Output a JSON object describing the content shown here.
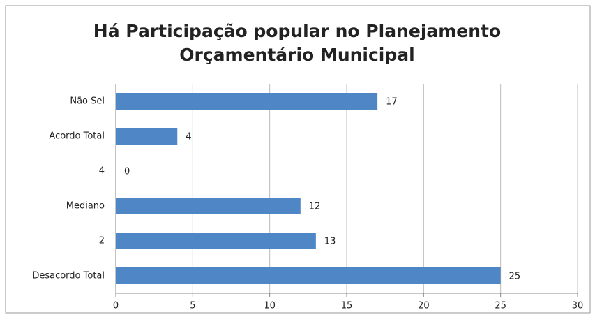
{
  "chart_data": {
    "type": "hbar",
    "title": [
      "Há Participação popular no Planejamento",
      "Orçamentário Municipal"
    ],
    "categories": [
      "Não Sei",
      "Acordo Total",
      "4",
      "Mediano",
      "2",
      "Desacordo Total"
    ],
    "values": [
      17,
      4,
      0,
      12,
      13,
      25
    ],
    "color": "#4f86c6",
    "xlim": [
      0,
      30
    ],
    "xticks": [
      0,
      5,
      10,
      15,
      20,
      25,
      30
    ],
    "grid": true
  }
}
